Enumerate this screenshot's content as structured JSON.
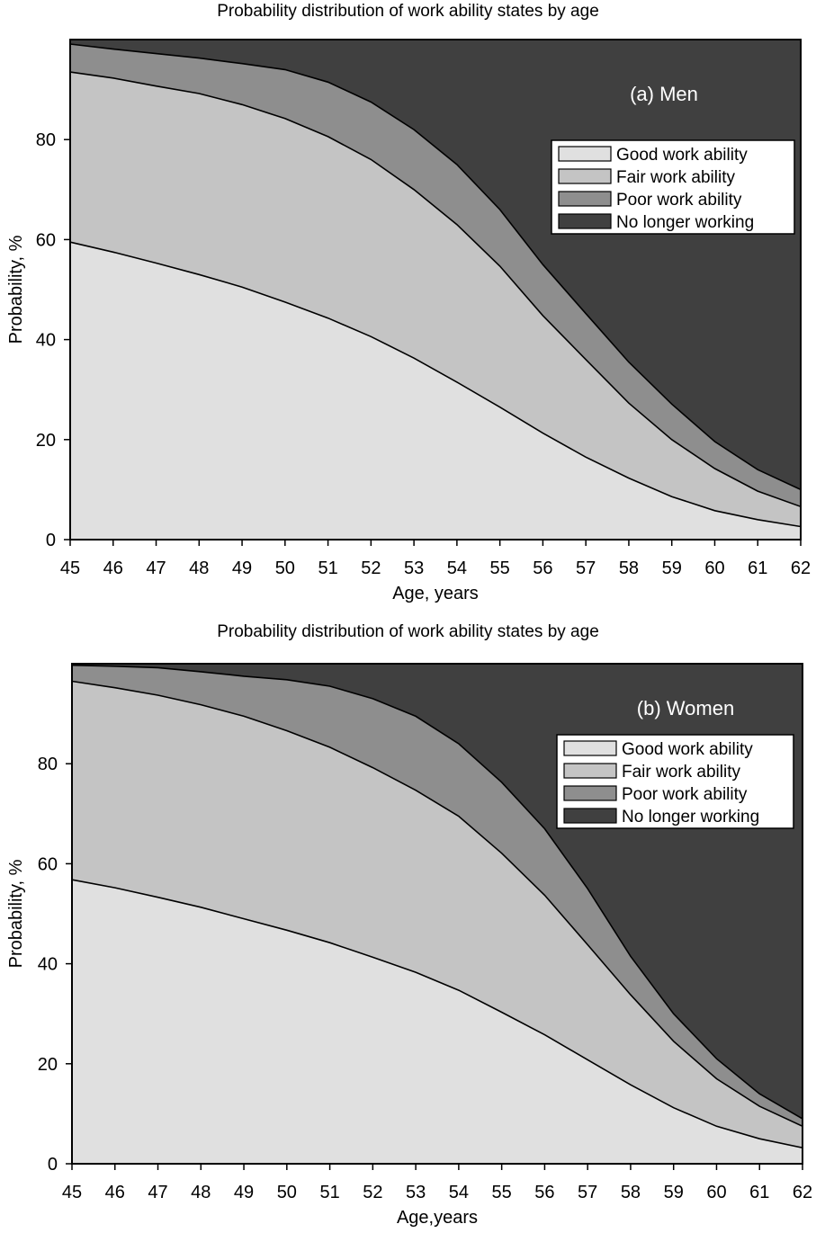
{
  "chart_data": [
    {
      "type": "area",
      "stacked": true,
      "title": "Probability distribution of work ability states by age",
      "panel_label": "(a) Men",
      "xlabel": "Age, years",
      "ylabel": "Probability, %",
      "xlim": [
        45,
        62
      ],
      "ylim": [
        0,
        100
      ],
      "yticks": [
        0,
        20,
        40,
        60,
        80
      ],
      "x": [
        45,
        46,
        47,
        48,
        49,
        50,
        51,
        52,
        53,
        54,
        55,
        56,
        57,
        58,
        59,
        60,
        61,
        62
      ],
      "legend_position": "top-right",
      "series": [
        {
          "name": "Good work ability",
          "color": "#e0e0e0",
          "values": [
            59.5,
            57.5,
            55.3,
            53.0,
            50.5,
            47.5,
            44.3,
            40.6,
            36.3,
            31.5,
            26.5,
            21.3,
            16.5,
            12.3,
            8.6,
            5.8,
            4.0,
            2.6
          ]
        },
        {
          "name": "Fair work ability",
          "color": "#c4c4c4",
          "values": [
            34.0,
            34.8,
            35.4,
            36.2,
            36.5,
            36.7,
            36.3,
            35.4,
            33.7,
            31.5,
            28.2,
            23.5,
            19.5,
            15.0,
            11.4,
            8.4,
            5.7,
            4.0
          ]
        },
        {
          "name": "Poor work ability",
          "color": "#8e8e8e",
          "values": [
            5.6,
            5.8,
            6.5,
            7.1,
            8.2,
            9.8,
            10.9,
            11.5,
            12.0,
            12.0,
            11.3,
            10.2,
            9.2,
            8.2,
            7.1,
            5.4,
            4.3,
            3.4
          ]
        },
        {
          "name": "No longer working",
          "color": "#404040",
          "values": [
            0.9,
            1.9,
            2.8,
            3.7,
            4.8,
            6.0,
            8.5,
            12.5,
            18.0,
            25.0,
            34.0,
            45.0,
            54.8,
            64.5,
            72.9,
            80.4,
            86.0,
            90.0
          ]
        }
      ]
    },
    {
      "type": "area",
      "stacked": true,
      "title": "Probability distribution of work ability states by age",
      "panel_label": "(b) Women",
      "xlabel": "Age,years",
      "ylabel": "Probability, %",
      "xlim": [
        45,
        62
      ],
      "ylim": [
        0,
        100
      ],
      "yticks": [
        0,
        20,
        40,
        60,
        80
      ],
      "x": [
        45,
        46,
        47,
        48,
        49,
        50,
        51,
        52,
        53,
        54,
        55,
        56,
        57,
        58,
        59,
        60,
        61,
        62
      ],
      "legend_position": "top-right",
      "series": [
        {
          "name": "Good work ability",
          "color": "#e0e0e0",
          "values": [
            56.8,
            55.2,
            53.3,
            51.3,
            49.0,
            46.7,
            44.2,
            41.3,
            38.3,
            34.7,
            30.3,
            25.8,
            20.8,
            15.8,
            11.2,
            7.5,
            5.0,
            3.2
          ]
        },
        {
          "name": "Fair work ability",
          "color": "#c4c4c4",
          "values": [
            39.7,
            40.0,
            40.4,
            40.5,
            40.5,
            39.9,
            39.1,
            37.9,
            36.4,
            34.8,
            31.8,
            27.9,
            23.0,
            18.0,
            13.3,
            9.5,
            6.5,
            4.3
          ]
        },
        {
          "name": "Poor work ability",
          "color": "#8e8e8e",
          "values": [
            3.2,
            4.3,
            5.5,
            6.6,
            8.0,
            10.2,
            12.2,
            13.8,
            14.8,
            14.5,
            14.2,
            13.3,
            11.2,
            7.7,
            5.5,
            4.0,
            2.5,
            1.5
          ]
        },
        {
          "name": "No longer working",
          "color": "#404040",
          "values": [
            0.3,
            0.5,
            0.8,
            1.6,
            2.5,
            3.2,
            4.5,
            7.0,
            10.5,
            16.0,
            23.7,
            33.0,
            45.0,
            58.5,
            70.0,
            79.0,
            86.0,
            91.0
          ]
        }
      ]
    }
  ]
}
